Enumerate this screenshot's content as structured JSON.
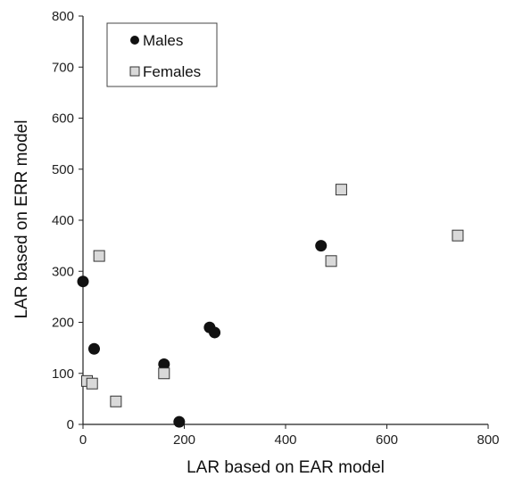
{
  "chart_data": {
    "type": "scatter",
    "title": "",
    "xlabel": "LAR based on EAR model",
    "ylabel": "LAR based on ERR model",
    "xlim": [
      0,
      800
    ],
    "ylim": [
      0,
      800
    ],
    "xticks": [
      "0",
      "200",
      "400",
      "600",
      "800"
    ],
    "yticks": [
      "0",
      "100",
      "200",
      "300",
      "400",
      "500",
      "600",
      "700",
      "800"
    ],
    "grid": false,
    "legend_position": "top-left",
    "series": [
      {
        "name": "Males",
        "marker": "circle",
        "color": "#111111",
        "points": [
          {
            "x": 0,
            "y": 280
          },
          {
            "x": 22,
            "y": 148
          },
          {
            "x": 160,
            "y": 118
          },
          {
            "x": 190,
            "y": 5
          },
          {
            "x": 250,
            "y": 190
          },
          {
            "x": 260,
            "y": 180
          },
          {
            "x": 470,
            "y": 350
          }
        ]
      },
      {
        "name": "Females",
        "marker": "square",
        "color": "#d9d9d9",
        "points": [
          {
            "x": 8,
            "y": 85
          },
          {
            "x": 18,
            "y": 80
          },
          {
            "x": 32,
            "y": 330
          },
          {
            "x": 65,
            "y": 45
          },
          {
            "x": 160,
            "y": 100
          },
          {
            "x": 490,
            "y": 320
          },
          {
            "x": 510,
            "y": 460
          },
          {
            "x": 740,
            "y": 370
          }
        ]
      }
    ]
  }
}
